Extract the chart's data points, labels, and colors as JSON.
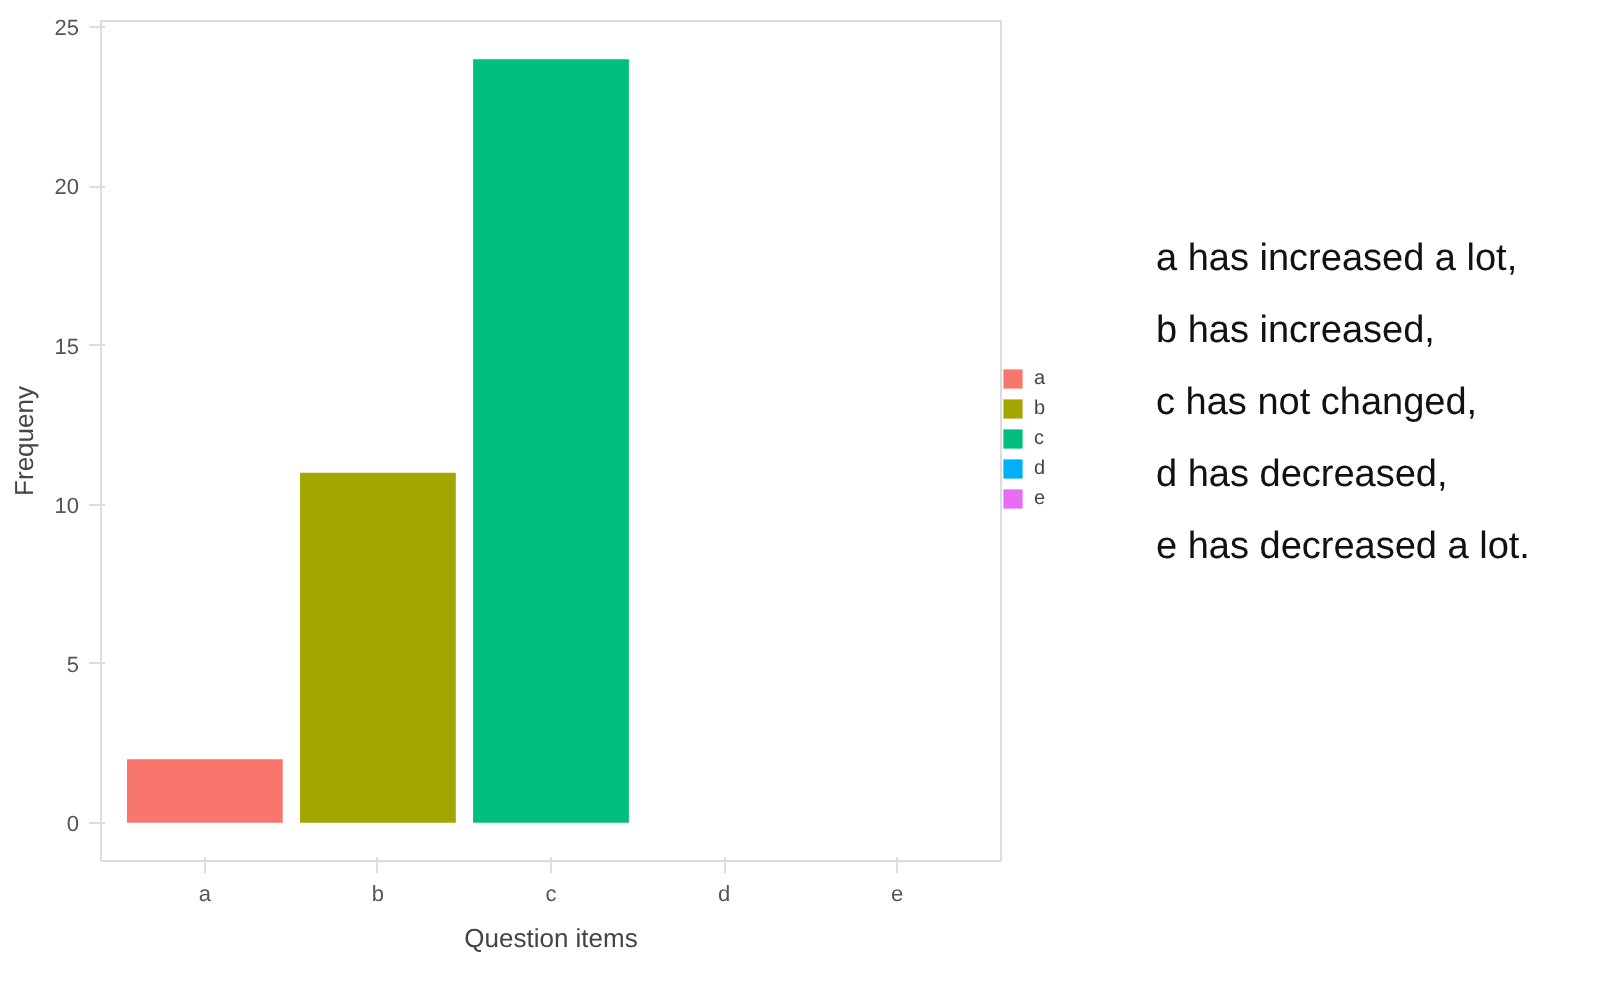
{
  "chart_data": {
    "type": "bar",
    "xlabel": "Question items",
    "ylabel": "Frequeny",
    "categories": [
      "a",
      "b",
      "c",
      "d",
      "e"
    ],
    "stacked": true,
    "series": [
      {
        "name": "a",
        "color": "#f8766d",
        "values": [
          2,
          null,
          null,
          null,
          null
        ]
      },
      {
        "name": "b",
        "color": "#a3a500",
        "values": [
          null,
          11,
          null,
          null,
          null
        ]
      },
      {
        "name": "c",
        "color": "#00bf7d",
        "values": [
          null,
          null,
          24,
          null,
          null
        ]
      },
      {
        "name": "d",
        "color": "#00b0f6",
        "values": [
          null,
          null,
          null,
          0,
          null
        ]
      },
      {
        "name": "e",
        "color": "#e76bf3",
        "values": [
          null,
          null,
          null,
          null,
          0
        ]
      }
    ],
    "ylim": [
      -1.2,
      25.2
    ],
    "yticks": [
      0,
      5,
      10,
      15,
      20,
      25
    ],
    "grid": false,
    "legend": "right",
    "annotations": [
      "a has increased a lot,",
      "b has increased,",
      "c has not changed,",
      "d has decreased,",
      "e has decreased a lot."
    ]
  }
}
